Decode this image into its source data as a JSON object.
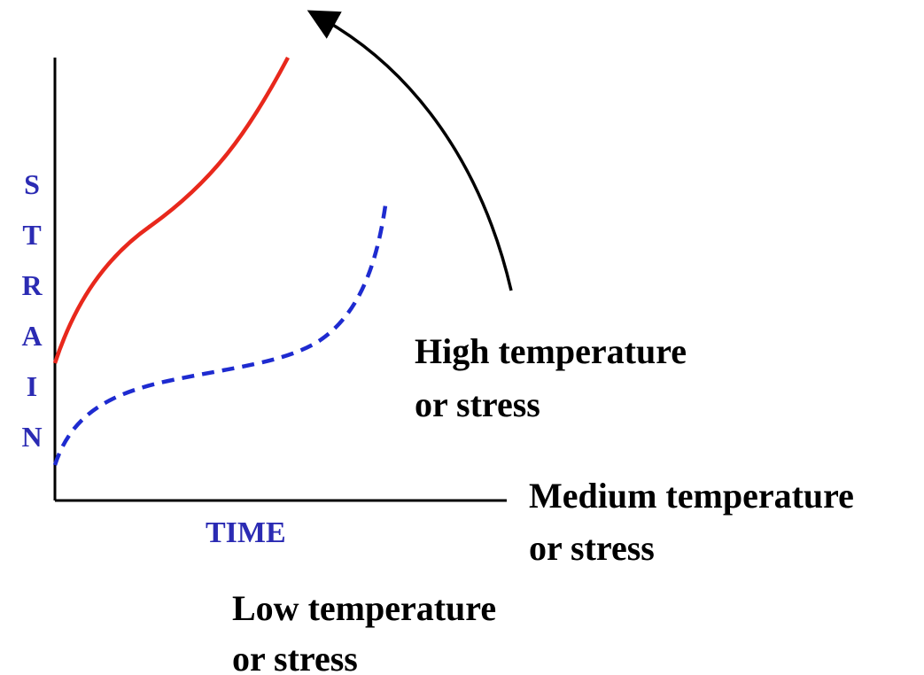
{
  "y_axis_label": "STRAIN",
  "x_axis_label": "TIME",
  "curves": [
    {
      "lines": [
        "High temperature",
        "or stress"
      ]
    },
    {
      "lines": [
        "Medium temperature",
        "or stress"
      ]
    },
    {
      "lines": [
        "Low temperature",
        "or stress"
      ]
    }
  ]
}
